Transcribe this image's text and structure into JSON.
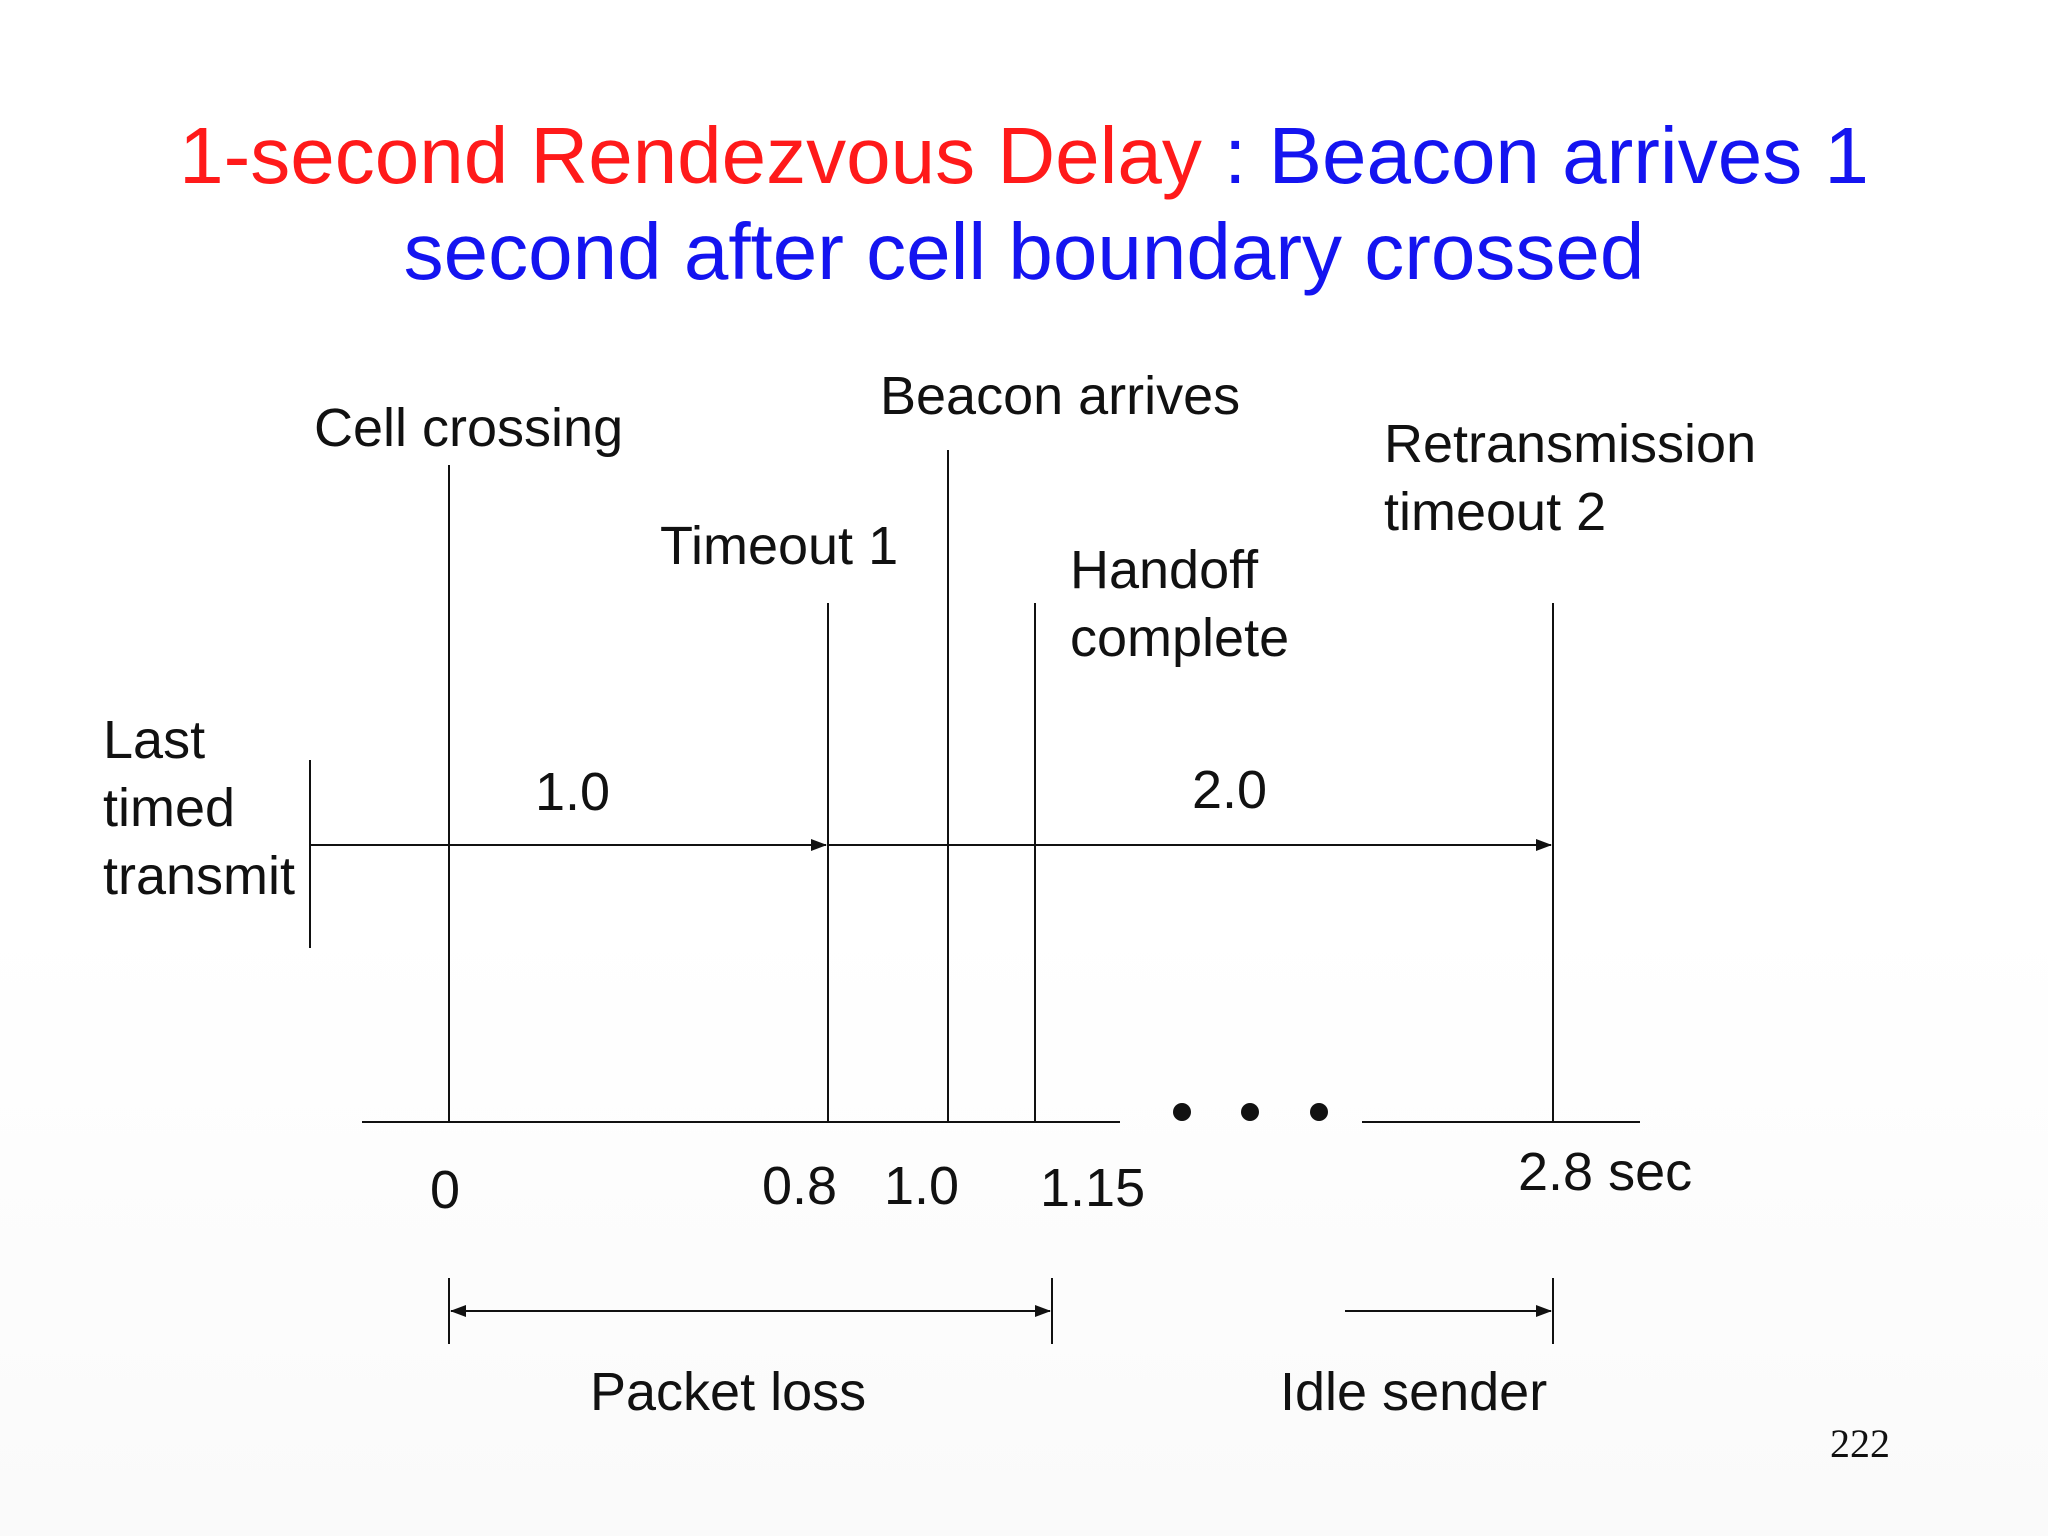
{
  "title": {
    "part1": "1-second Rendezvous Delay",
    "separator": " : ",
    "part2": "Beacon arrives 1",
    "line2": "second after cell boundary crossed",
    "colors": {
      "part1": "#ff1a1a",
      "part2": "#1414f0"
    }
  },
  "events": {
    "cell_crossing": "Cell crossing",
    "beacon_arrives": "Beacon arrives",
    "retransmission_line1": "Retransmission",
    "retransmission_line2": "timeout 2",
    "timeout1": "Timeout 1",
    "handoff_line1": "Handoff",
    "handoff_line2": "complete",
    "last_line1": "Last",
    "last_line2": "timed",
    "last_line3": "transmit"
  },
  "intervals": {
    "first": "1.0",
    "second": "2.0"
  },
  "ticks": {
    "t0": "0",
    "t08": "0.8",
    "t10": "1.0",
    "t115": "1.15",
    "t28": "2.8 sec"
  },
  "ellipsis": "• • •",
  "spans": {
    "packet_loss": "Packet loss",
    "idle_sender": "Idle sender"
  },
  "page_number": "222"
}
